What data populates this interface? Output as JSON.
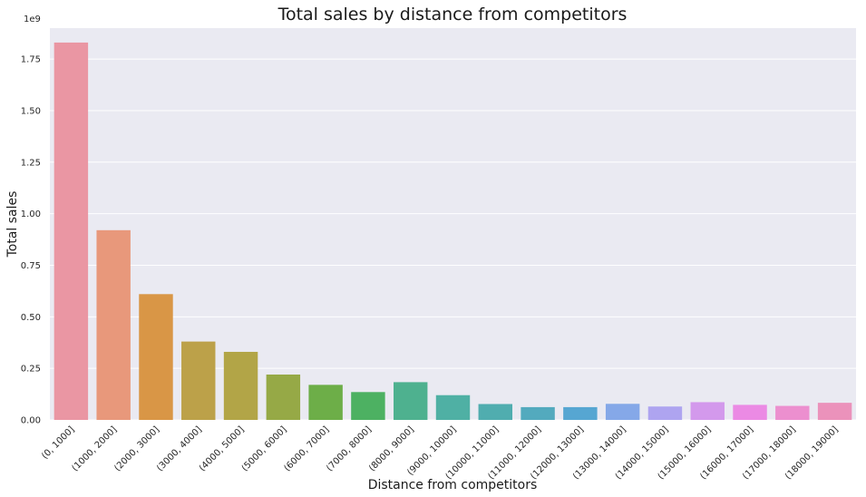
{
  "chart_data": {
    "type": "bar",
    "title": "Total sales by distance from competitors",
    "xlabel": "Distance from competitors",
    "ylabel": "Total sales",
    "y_offset_label": "1e9",
    "y_multiplier": 1000000000,
    "ylim": [
      0,
      1.9
    ],
    "yticks": [
      "0.00",
      "0.25",
      "0.50",
      "0.75",
      "1.00",
      "1.25",
      "1.50",
      "1.75"
    ],
    "grid": true,
    "categories": [
      "(0, 1000]",
      "(1000, 2000]",
      "(2000, 3000]",
      "(3000, 4000]",
      "(4000, 5000]",
      "(5000, 6000]",
      "(6000, 7000]",
      "(7000, 8000]",
      "(8000, 9000]",
      "(9000, 10000]",
      "(10000, 11000]",
      "(11000, 12000]",
      "(12000, 13000]",
      "(13000, 14000]",
      "(14000, 15000]",
      "(15000, 16000]",
      "(16000, 17000]",
      "(17000, 18000]",
      "(18000, 19000]"
    ],
    "values": [
      1.83,
      0.92,
      0.61,
      0.38,
      0.33,
      0.22,
      0.17,
      0.135,
      0.183,
      0.12,
      0.077,
      0.062,
      0.062,
      0.078,
      0.065,
      0.086,
      0.073,
      0.068,
      0.083
    ],
    "colors": [
      "#ea96a3",
      "#e8987b",
      "#d99646",
      "#bca149",
      "#b2a547",
      "#96a946",
      "#6dae48",
      "#4db162",
      "#4eb18f",
      "#4fb0a4",
      "#50adaf",
      "#53aabe",
      "#56a6d2",
      "#85a8e8",
      "#aea4f0",
      "#d399ec",
      "#eb8ae4",
      "#ec8fcf",
      "#eb92bb"
    ],
    "plot_background": "#eaeaf2",
    "grid_color": "#ffffff"
  }
}
